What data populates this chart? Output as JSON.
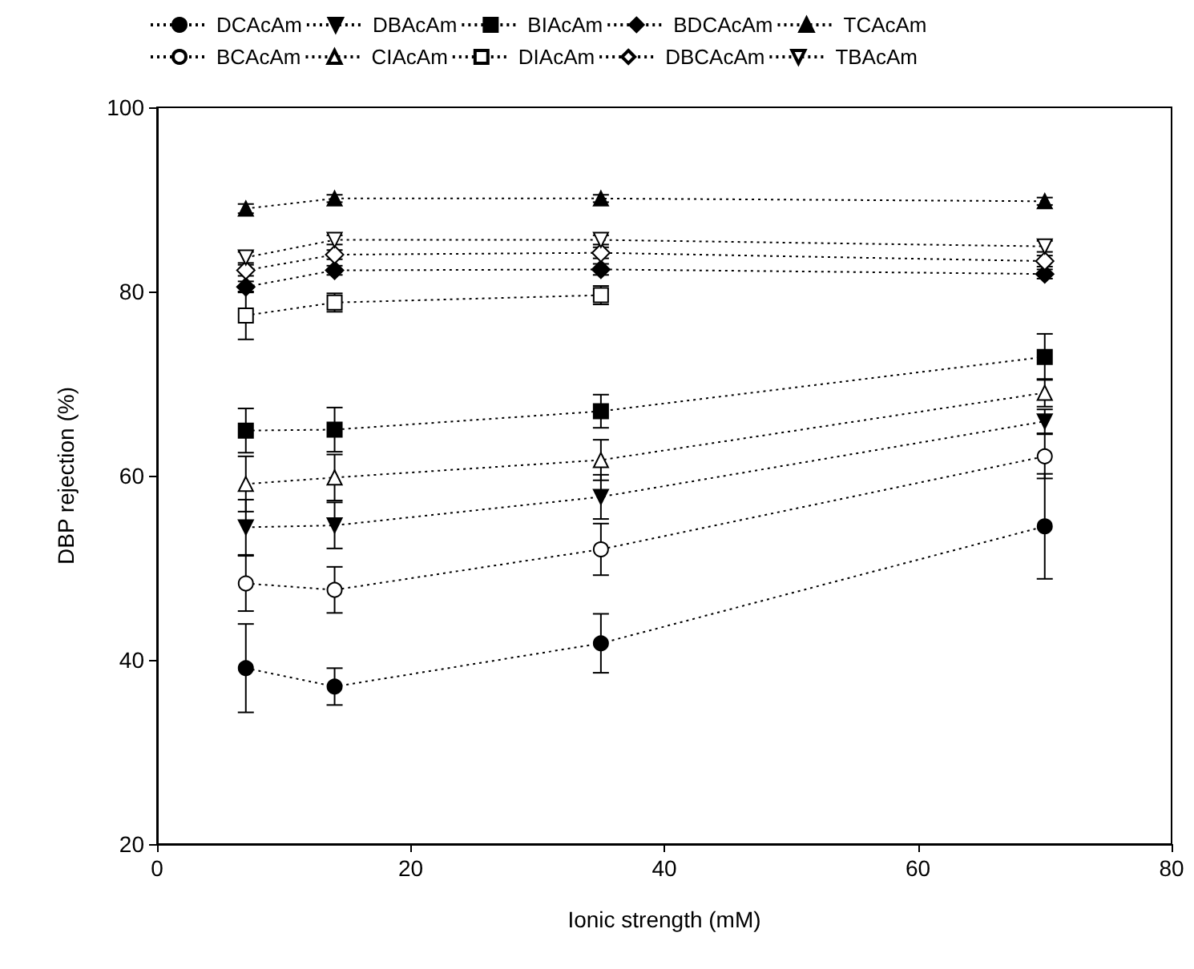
{
  "chart_data": {
    "type": "line",
    "xlabel": "Ionic strength (mM)",
    "ylabel": "DBP rejection (%)",
    "xlim": [
      0,
      80
    ],
    "xticks": [
      0,
      20,
      40,
      60,
      80
    ],
    "ylim": [
      20,
      100
    ],
    "yticks": [
      20,
      40,
      60,
      80,
      100
    ],
    "grid": false,
    "legend": "top",
    "line_style": "dotted",
    "x": [
      7,
      14,
      35,
      70
    ],
    "series": [
      {
        "name": "DCAcAm",
        "color": "#000000",
        "marker": "circle",
        "values": [
          39.1,
          37.1,
          41.8,
          54.5
        ],
        "errors": [
          4.8,
          2,
          3.2,
          5.7
        ]
      },
      {
        "name": "DBAcAm",
        "color": "#000000",
        "marker": "triangle-down",
        "values": [
          54.4,
          54.6,
          57.7,
          65.9
        ],
        "errors": [
          3,
          2.5,
          2.4,
          1.3
        ]
      },
      {
        "name": "BIAcAm",
        "color": "#000000",
        "marker": "square",
        "values": [
          64.9,
          65,
          67,
          72.9
        ],
        "errors": [
          2.4,
          2.4,
          1.8,
          2.5
        ]
      },
      {
        "name": "BDCAcAm",
        "color": "#000000",
        "marker": "diamond",
        "values": [
          80.5,
          82.3,
          82.4,
          81.9
        ],
        "errors": [
          0.6,
          0.5,
          0.6,
          0.5
        ]
      },
      {
        "name": "TCAcAm",
        "color": "#000000",
        "marker": "triangle",
        "values": [
          89,
          90.1,
          90.1,
          89.8
        ],
        "errors": [
          0.5,
          0.4,
          0.4,
          0.4
        ]
      },
      {
        "name": "BCAcAm",
        "color": "#ffffff",
        "marker": "circle",
        "values": [
          48.3,
          47.6,
          52,
          62.1
        ],
        "errors": [
          3,
          2.5,
          2.8,
          2.4
        ]
      },
      {
        "name": "CIAcAm",
        "color": "#ffffff",
        "marker": "triangle",
        "values": [
          59.1,
          59.8,
          61.7,
          69
        ],
        "errors": [
          3,
          2.5,
          2.2,
          1.5
        ]
      },
      {
        "name": "DIAcAm",
        "color": "#ffffff",
        "marker": "square",
        "values": [
          77.4,
          78.8,
          79.6,
          null
        ],
        "errors": [
          2.6,
          1,
          1,
          null
        ]
      },
      {
        "name": "DBCAcAm",
        "color": "#ffffff",
        "marker": "diamond",
        "values": [
          82.3,
          84,
          84.2,
          83.3
        ],
        "errors": [
          0.6,
          0.5,
          0.6,
          0.6
        ]
      },
      {
        "name": "TBAcAm",
        "color": "#ffffff",
        "marker": "triangle-down",
        "values": [
          83.7,
          85.6,
          85.6,
          84.9
        ],
        "errors": [
          0.6,
          0.5,
          0.5,
          0.6
        ]
      }
    ]
  }
}
